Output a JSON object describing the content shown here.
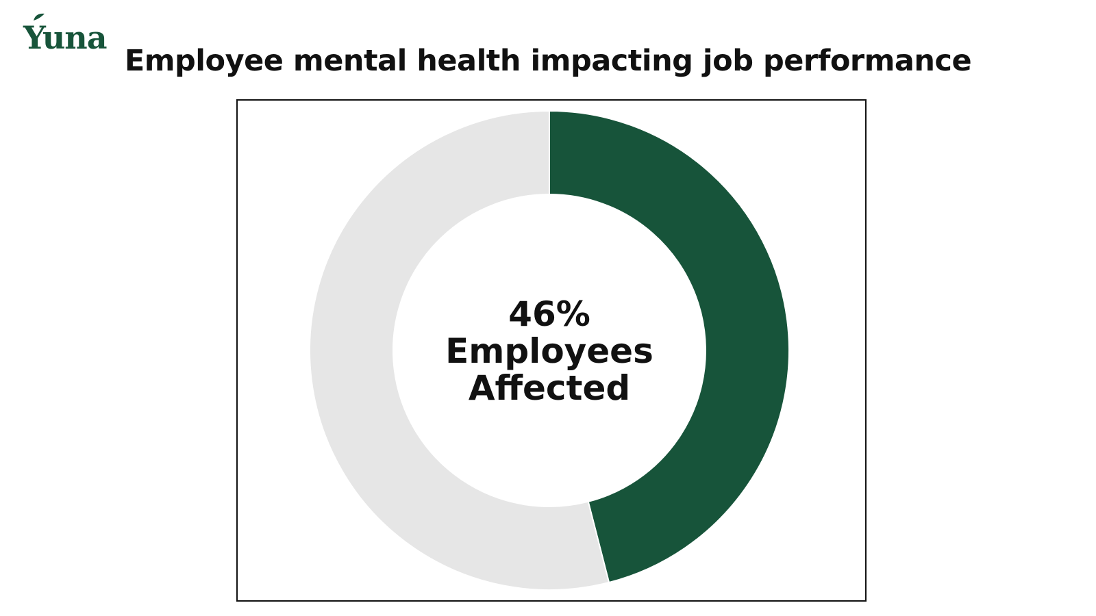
{
  "brand": {
    "logo_text": "Yuna",
    "brand_color": "#17543A"
  },
  "title": "Employee mental health impacting job performance",
  "chart_data": {
    "type": "pie",
    "variant": "donut",
    "title": "Employee mental health impacting job performance",
    "slices": [
      {
        "label": "Employees Affected",
        "value": 46,
        "color": "#17543A"
      },
      {
        "label": "",
        "value": 54,
        "color": "#E6E6E6"
      }
    ],
    "center_label_lines": [
      "46%",
      "Employees",
      "Affected"
    ],
    "start": "top",
    "direction": "clockwise",
    "legend": "none"
  }
}
